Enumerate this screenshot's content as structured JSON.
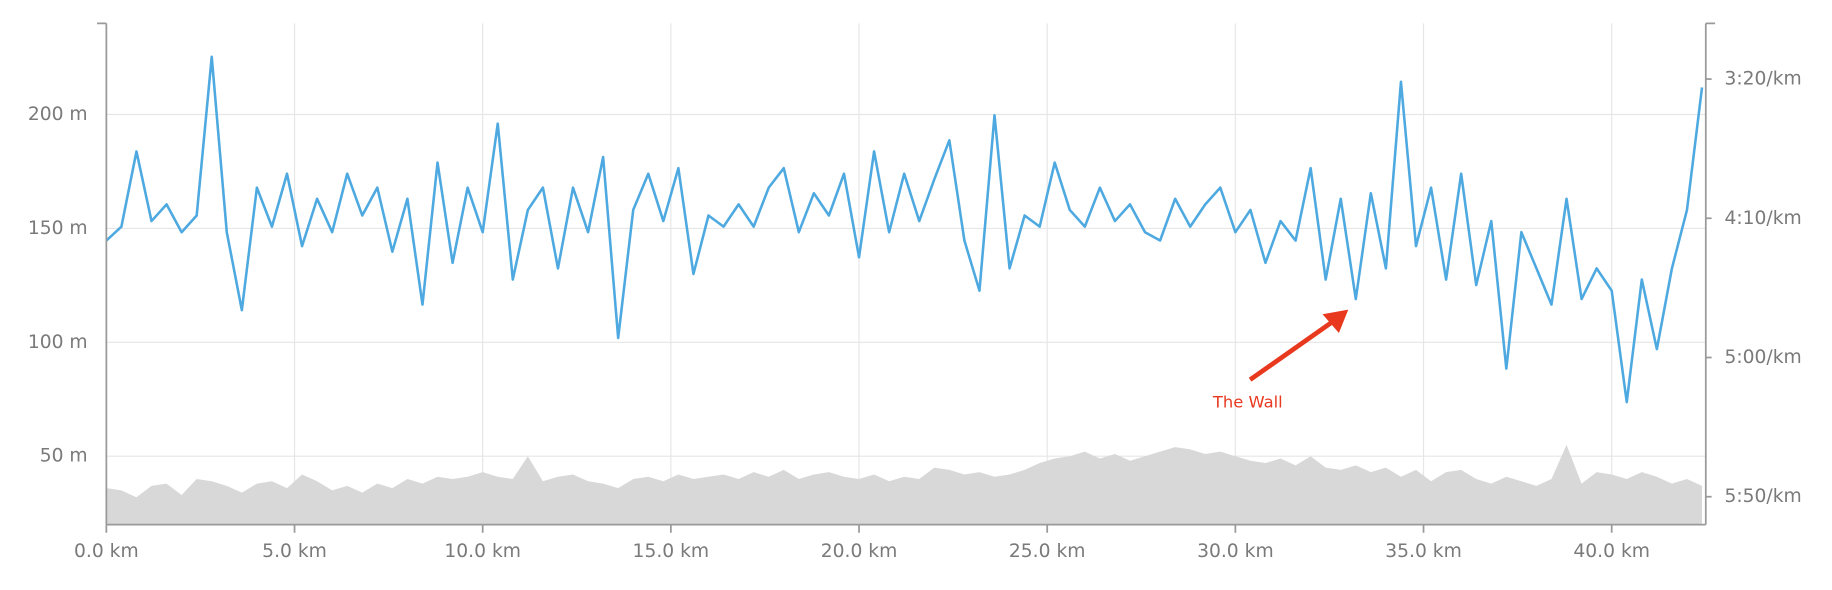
{
  "chart_data": {
    "type": "line",
    "x": [
      0,
      0.4,
      0.8,
      1.2,
      1.6,
      2.0,
      2.4,
      2.8,
      3.2,
      3.6,
      4.0,
      4.4,
      4.8,
      5.2,
      5.6,
      6.0,
      6.4,
      6.8,
      7.2,
      7.6,
      8.0,
      8.4,
      8.8,
      9.2,
      9.6,
      10.0,
      10.4,
      10.8,
      11.2,
      11.6,
      12.0,
      12.4,
      12.8,
      13.2,
      13.6,
      14.0,
      14.4,
      14.8,
      15.2,
      15.6,
      16.0,
      16.4,
      16.8,
      17.2,
      17.6,
      18.0,
      18.4,
      18.8,
      19.2,
      19.6,
      20.0,
      20.4,
      20.8,
      21.2,
      21.6,
      22.0,
      22.4,
      22.8,
      23.2,
      23.6,
      24.0,
      24.4,
      24.8,
      25.2,
      25.6,
      26.0,
      26.4,
      26.8,
      27.2,
      27.6,
      28.0,
      28.4,
      28.8,
      29.2,
      29.6,
      30.0,
      30.4,
      30.8,
      31.2,
      31.6,
      32.0,
      32.4,
      32.8,
      33.2,
      33.6,
      34.0,
      34.4,
      34.8,
      35.2,
      35.6,
      36.0,
      36.4,
      36.8,
      37.2,
      37.6,
      38.0,
      38.4,
      38.8,
      39.2,
      39.6,
      40.0,
      40.4,
      40.8,
      41.2,
      41.6,
      42.0,
      42.4
    ],
    "series": [
      {
        "type": "area",
        "color": "#d8d8d8",
        "values": [
          36,
          35,
          32,
          37,
          38,
          33,
          40,
          39,
          37,
          34,
          38,
          39,
          36,
          42,
          39,
          35,
          37,
          34,
          38,
          36,
          40,
          38,
          41,
          40,
          41,
          43,
          41,
          40,
          50,
          39,
          41,
          42,
          39,
          38,
          36,
          40,
          41,
          39,
          42,
          40,
          41,
          42,
          40,
          43,
          41,
          44,
          40,
          42,
          43,
          41,
          40,
          42,
          39,
          41,
          40,
          45,
          44,
          42,
          43,
          41,
          42,
          44,
          47,
          49,
          50,
          52,
          49,
          51,
          48,
          50,
          52,
          54,
          53,
          51,
          52,
          50,
          48,
          47,
          49,
          46,
          50,
          45,
          44,
          46,
          43,
          45,
          41,
          44,
          39,
          43,
          44,
          40,
          38,
          41,
          39,
          37,
          40,
          55,
          38,
          43,
          42,
          40,
          43,
          41,
          38,
          40,
          37
        ]
      },
      {
        "type": "line",
        "axis": "y2",
        "color": "#4ea9e0",
        "values": [
          258,
          253,
          226,
          251,
          245,
          255,
          249,
          192,
          255,
          283,
          239,
          253,
          234,
          260,
          243,
          255,
          234,
          249,
          239,
          262,
          243,
          281,
          230,
          266,
          239,
          255,
          216,
          272,
          247,
          239,
          268,
          239,
          255,
          228,
          293,
          247,
          234,
          251,
          232,
          270,
          249,
          253,
          245,
          253,
          239,
          232,
          255,
          241,
          249,
          234,
          264,
          226,
          255,
          234,
          251,
          236,
          222,
          258,
          276,
          213,
          268,
          249,
          253,
          230,
          247,
          253,
          239,
          251,
          245,
          255,
          258,
          243,
          253,
          245,
          239,
          255,
          247,
          266,
          251,
          258,
          232,
          272,
          243,
          279,
          241,
          268,
          201,
          260,
          239,
          272,
          234,
          274,
          251,
          304,
          255,
          268,
          281,
          243,
          279,
          268,
          276,
          316,
          272,
          297,
          268,
          247,
          203
        ]
      }
    ],
    "xlim": [
      0,
      42.5
    ],
    "xticks": [
      {
        "value": 0,
        "label": "0.0 km"
      },
      {
        "value": 5,
        "label": "5.0 km"
      },
      {
        "value": 10,
        "label": "10.0 km"
      },
      {
        "value": 15,
        "label": "15.0 km"
      },
      {
        "value": 20,
        "label": "20.0 km"
      },
      {
        "value": 25,
        "label": "25.0 km"
      },
      {
        "value": 30,
        "label": "30.0 km"
      },
      {
        "value": 35,
        "label": "35.0 km"
      },
      {
        "value": 40,
        "label": "40.0 km"
      }
    ],
    "ylim": [
      20,
      240
    ],
    "yticks": [
      {
        "value": 50,
        "label": "50 m"
      },
      {
        "value": 100,
        "label": "100 m"
      },
      {
        "value": 150,
        "label": "150 m"
      },
      {
        "value": 200,
        "label": "200 m"
      }
    ],
    "y2lim": [
      360,
      180
    ],
    "y2ticks": [
      {
        "value": 200,
        "label": "3:20/km"
      },
      {
        "value": 250,
        "label": "4:10/km"
      },
      {
        "value": 300,
        "label": "5:00/km"
      },
      {
        "value": 350,
        "label": "5:50/km"
      }
    ],
    "grid": true,
    "annotations": [
      {
        "text": "The Wall",
        "x": 33.0,
        "color": "#e8391f"
      }
    ]
  }
}
